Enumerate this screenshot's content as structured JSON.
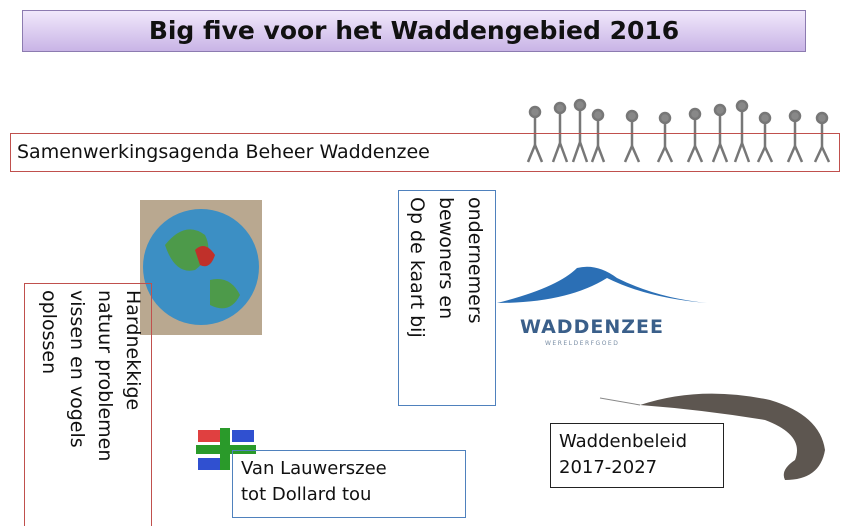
{
  "title": "Big five voor het Waddengebied 2016",
  "banner": "Samenwerkingsagenda  Beheer  Waddenzee",
  "left_box": {
    "lines": [
      "Hardnekkige",
      "natuur problemen",
      "vissen en vogels",
      "oplossen"
    ]
  },
  "map_box": {
    "lines": [
      "Op de kaart bij",
      "bewoners en",
      "ondernemers"
    ]
  },
  "logo": {
    "name": "WADDENZEE",
    "sub": "WERELDERFGOED"
  },
  "policy_box": {
    "lines": [
      "Waddenbeleid",
      "2017-2027"
    ]
  },
  "region_box": {
    "lines": [
      "Van Lauwerszee",
      "tot Dollard tou"
    ]
  }
}
